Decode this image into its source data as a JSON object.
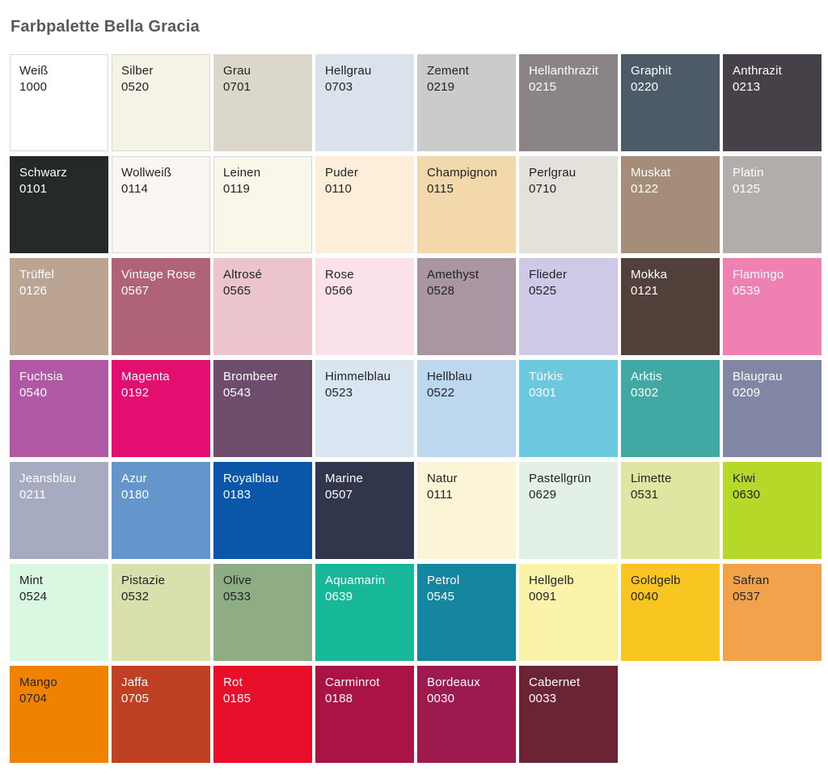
{
  "title": "Farbpalette Bella Gracia",
  "palette": {
    "columns": 8,
    "swatches": [
      {
        "name": "Weiß",
        "code": "1000",
        "color": "#ffffff",
        "text": "dark",
        "border": true
      },
      {
        "name": "Silber",
        "code": "0520",
        "color": "#f5f2e6",
        "text": "dark",
        "border": true
      },
      {
        "name": "Grau",
        "code": "0701",
        "color": "#dbd8cb",
        "text": "dark",
        "border": false
      },
      {
        "name": "Hellgrau",
        "code": "0703",
        "color": "#dbe2eb",
        "text": "dark",
        "border": false
      },
      {
        "name": "Zement",
        "code": "0219",
        "color": "#caccca",
        "text": "dark",
        "border": false
      },
      {
        "name": "Hellanthrazit",
        "code": "0215",
        "color": "#8b8486",
        "text": "light",
        "border": false
      },
      {
        "name": "Graphit",
        "code": "0220",
        "color": "#4d5a67",
        "text": "light",
        "border": false
      },
      {
        "name": "Anthrazit",
        "code": "0213",
        "color": "#464149",
        "text": "light",
        "border": false
      },
      {
        "name": "Schwarz",
        "code": "0101",
        "color": "#25292a",
        "text": "light",
        "border": false
      },
      {
        "name": "Wollweiß",
        "code": "0114",
        "color": "#faf6f2",
        "text": "dark",
        "border": true
      },
      {
        "name": "Leinen",
        "code": "0119",
        "color": "#f9f7e9",
        "text": "dark",
        "border": true
      },
      {
        "name": "Puder",
        "code": "0110",
        "color": "#fdeeda",
        "text": "dark",
        "border": false
      },
      {
        "name": "Champignon",
        "code": "0115",
        "color": "#f2d8aa",
        "text": "dark",
        "border": false
      },
      {
        "name": "Perlgrau",
        "code": "0710",
        "color": "#e3e1da",
        "text": "dark",
        "border": false
      },
      {
        "name": "Muskat",
        "code": "0122",
        "color": "#a68d79",
        "text": "light",
        "border": false
      },
      {
        "name": "Platin",
        "code": "0125",
        "color": "#b2adaa",
        "text": "light",
        "border": false
      },
      {
        "name": "Trüffel",
        "code": "0126",
        "color": "#bba492",
        "text": "light",
        "border": false
      },
      {
        "name": "Vintage Rose",
        "code": "0567",
        "color": "#b06377",
        "text": "light",
        "border": false
      },
      {
        "name": "Altrosé",
        "code": "0565",
        "color": "#ecc4cc",
        "text": "dark",
        "border": false
      },
      {
        "name": "Rose",
        "code": "0566",
        "color": "#fbe2ea",
        "text": "dark",
        "border": false
      },
      {
        "name": "Amethyst",
        "code": "0528",
        "color": "#aa95a2",
        "text": "dark",
        "border": false
      },
      {
        "name": "Flieder",
        "code": "0525",
        "color": "#cfc8e6",
        "text": "dark",
        "border": false
      },
      {
        "name": "Mokka",
        "code": "0121",
        "color": "#52403b",
        "text": "light",
        "border": false
      },
      {
        "name": "Flamingo",
        "code": "0539",
        "color": "#ee80b2",
        "text": "light",
        "border": false
      },
      {
        "name": "Fuchsia",
        "code": "0540",
        "color": "#b058a4",
        "text": "light",
        "border": false
      },
      {
        "name": "Magenta",
        "code": "0192",
        "color": "#e40e70",
        "text": "light",
        "border": false
      },
      {
        "name": "Brombeer",
        "code": "0543",
        "color": "#6e4d6c",
        "text": "light",
        "border": false
      },
      {
        "name": "Himmelblau",
        "code": "0523",
        "color": "#d9e5f1",
        "text": "dark",
        "border": false
      },
      {
        "name": "Hellblau",
        "code": "0522",
        "color": "#bcd7ee",
        "text": "dark",
        "border": false
      },
      {
        "name": "Türkis",
        "code": "0301",
        "color": "#6cc8de",
        "text": "light",
        "border": false
      },
      {
        "name": "Arktis",
        "code": "0302",
        "color": "#42a8a3",
        "text": "light",
        "border": false
      },
      {
        "name": "Blaugrau",
        "code": "0209",
        "color": "#8086a4",
        "text": "light",
        "border": false
      },
      {
        "name": "Jeansblau",
        "code": "0211",
        "color": "#a7abc1",
        "text": "light",
        "border": false
      },
      {
        "name": "Azur",
        "code": "0180",
        "color": "#6495cb",
        "text": "light",
        "border": false
      },
      {
        "name": "Royalblau",
        "code": "0183",
        "color": "#0a57a9",
        "text": "light",
        "border": false
      },
      {
        "name": "Marine",
        "code": "0507",
        "color": "#32364d",
        "text": "light",
        "border": false
      },
      {
        "name": "Natur",
        "code": "0111",
        "color": "#fbf4d7",
        "text": "dark",
        "border": false
      },
      {
        "name": "Pastellgrün",
        "code": "0629",
        "color": "#e2f0e6",
        "text": "dark",
        "border": false
      },
      {
        "name": "Limette",
        "code": "0531",
        "color": "#e0e5a2",
        "text": "dark",
        "border": false
      },
      {
        "name": "Kiwi",
        "code": "0630",
        "color": "#b5d829",
        "text": "dark",
        "border": false
      },
      {
        "name": "Mint",
        "code": "0524",
        "color": "#d9f7e1",
        "text": "dark",
        "border": false
      },
      {
        "name": "Pistazie",
        "code": "0532",
        "color": "#dadfae",
        "text": "dark",
        "border": false
      },
      {
        "name": "Olive",
        "code": "0533",
        "color": "#8fad85",
        "text": "dark",
        "border": false
      },
      {
        "name": "Aquamarin",
        "code": "0639",
        "color": "#16b899",
        "text": "light",
        "border": false
      },
      {
        "name": "Petrol",
        "code": "0545",
        "color": "#14869f",
        "text": "light",
        "border": false
      },
      {
        "name": "Hellgelb",
        "code": "0091",
        "color": "#fbf3aa",
        "text": "dark",
        "border": false
      },
      {
        "name": "Goldgelb",
        "code": "0040",
        "color": "#f9c521",
        "text": "dark",
        "border": false
      },
      {
        "name": "Safran",
        "code": "0537",
        "color": "#f2a24b",
        "text": "dark",
        "border": false
      },
      {
        "name": "Mango",
        "code": "0704",
        "color": "#ef8300",
        "text": "dark",
        "border": false
      },
      {
        "name": "Jaffa",
        "code": "0705",
        "color": "#bf4022",
        "text": "light",
        "border": false
      },
      {
        "name": "Rot",
        "code": "0185",
        "color": "#e80f2a",
        "text": "light",
        "border": false
      },
      {
        "name": "Carminrot",
        "code": "0188",
        "color": "#aa1445",
        "text": "light",
        "border": false
      },
      {
        "name": "Bordeaux",
        "code": "0030",
        "color": "#9c1a4d",
        "text": "light",
        "border": false
      },
      {
        "name": "Cabernet",
        "code": "0033",
        "color": "#6a2433",
        "text": "light",
        "border": false
      }
    ]
  }
}
